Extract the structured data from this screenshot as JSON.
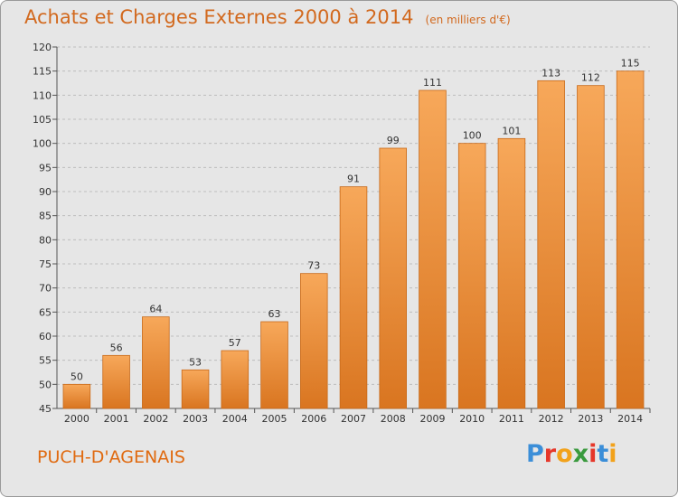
{
  "title": "Achats et Charges Externes 2000 à 2014",
  "subtitle": "(en milliers d'€)",
  "location": "PUCH-D'AGENAIS",
  "brand": {
    "letters": [
      "P",
      "r",
      "o",
      "x",
      "i",
      "t",
      "i"
    ],
    "colors": [
      "#3b8ed8",
      "#e6372a",
      "#f2a21b",
      "#3a9a3e",
      "#e6372a",
      "#3b8ed8",
      "#f2a21b"
    ]
  },
  "colors": {
    "bar_top": "#f7a85a",
    "bar_bottom": "#d97520",
    "bar_edge": "#c86a1a",
    "grid": "#bdbdbd",
    "plot_bg": "#e6e6e6"
  },
  "chart_data": {
    "type": "bar",
    "title": "Achats et Charges Externes 2000 à 2014",
    "subtitle": "(en milliers d'€)",
    "categories": [
      "2000",
      "2001",
      "2002",
      "2003",
      "2004",
      "2005",
      "2006",
      "2007",
      "2008",
      "2009",
      "2010",
      "2011",
      "2012",
      "2013",
      "2014"
    ],
    "values": [
      50,
      56,
      64,
      53,
      57,
      63,
      73,
      91,
      99,
      111,
      100,
      101,
      113,
      112,
      115
    ],
    "xlabel": "",
    "ylabel": "",
    "ylim": [
      45,
      120
    ],
    "yticks": [
      45,
      50,
      55,
      60,
      65,
      70,
      75,
      80,
      85,
      90,
      95,
      100,
      105,
      110,
      115,
      120
    ],
    "grid": "horizontal dashed",
    "legend": "none"
  }
}
